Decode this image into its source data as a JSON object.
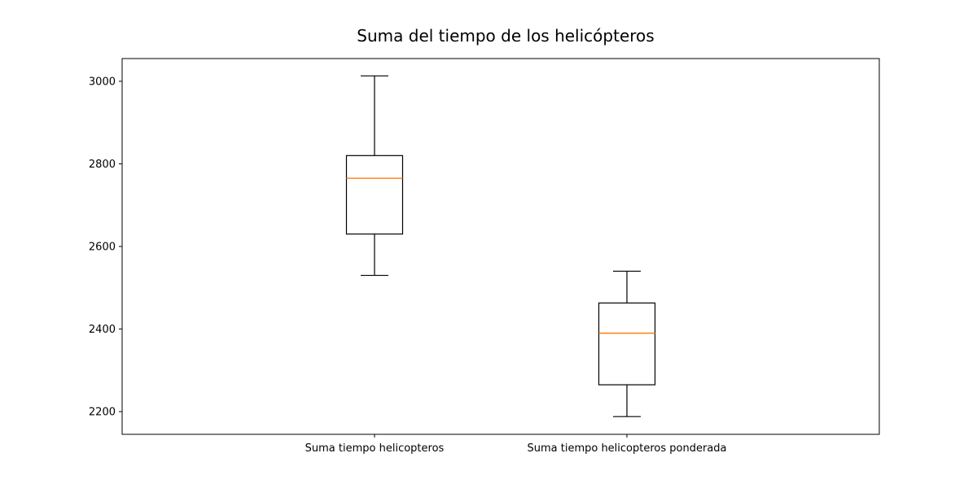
{
  "chart_data": {
    "type": "boxplot",
    "title": "Suma del tiempo de los helicópteros",
    "xlabel": "",
    "ylabel": "",
    "ylim": [
      2145,
      3055
    ],
    "yticks": [
      2200,
      2400,
      2600,
      2800,
      3000
    ],
    "grid": false,
    "colors": {
      "box": "#000000",
      "median": "#ff7f0e"
    },
    "boxes": [
      {
        "label": "Suma tiempo helicopteros",
        "whisker_low": 2530,
        "q1": 2630,
        "median": 2765,
        "q3": 2820,
        "whisker_high": 3013
      },
      {
        "label": "Suma tiempo helicopteros ponderada",
        "whisker_low": 2188,
        "q1": 2265,
        "median": 2390,
        "q3": 2463,
        "whisker_high": 2540
      }
    ]
  }
}
